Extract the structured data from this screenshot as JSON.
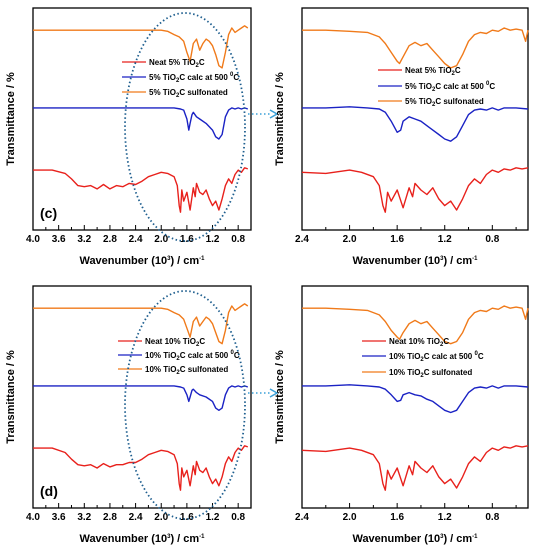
{
  "colors": {
    "neat": "#e8211c",
    "calc": "#1a22c4",
    "sulfonated": "#f07a1a",
    "ellipse": "#1f5f8f",
    "arrow": "#3aa0d8"
  },
  "axis_text": {
    "ylabel": "Transmittance / %",
    "xlabel_main": "Wavenumber (10",
    "xlabel_exp": "3",
    "xlabel_tail": ") / cm",
    "xlabel_tail_exp": "-1"
  },
  "panel_tags": {
    "c": "(c)",
    "d": "(d)"
  },
  "legend_fragments": {
    "tio": "TiO",
    "two": "2",
    "c_calc": "C calc at 500 ",
    "deg": "0",
    "celsius": "C",
    "c_plain": "C",
    "c_sulf": "C sulfonated"
  },
  "legend_prefixes": {
    "neat5": "Neat 5% ",
    "calc5": "5% ",
    "sulf5": "5% ",
    "neat10": "Neat 10% ",
    "calc10": "10% ",
    "sulf10": "10% "
  },
  "chart_data": [
    {
      "id": "c-full",
      "type": "line",
      "xlabel": "Wavenumber (10^3) / cm^-1",
      "ylabel": "Transmittance / %",
      "xlim": [
        4.0,
        0.6
      ],
      "x_ticks": [
        "4.0",
        "3.6",
        "3.2",
        "2.8",
        "2.4",
        "2.0",
        "1.6",
        "1.2",
        "0.8"
      ],
      "legend": {
        "placement": "top-right",
        "entries": [
          "Neat 5% TiO2C",
          "5% TiO2C calc at 500 0C",
          "5% TiO2C sulfonated"
        ]
      },
      "annotation": "(c)",
      "series": [
        {
          "name": "5% TiO2C sulfonated",
          "x": [
            4.0,
            2.0,
            1.9,
            1.8,
            1.72,
            1.65,
            1.6,
            1.55,
            1.5,
            1.45,
            1.4,
            1.35,
            1.3,
            1.25,
            1.2,
            1.15,
            1.1,
            1.05,
            1.0,
            0.95,
            0.9,
            0.85,
            0.8,
            0.75,
            0.7,
            0.65
          ],
          "y": [
            8.5,
            8.5,
            8.45,
            8.3,
            8.2,
            8.0,
            7.5,
            7.1,
            7.9,
            8.1,
            7.6,
            7.9,
            8.1,
            8.0,
            7.8,
            7.4,
            6.9,
            6.8,
            7.5,
            8.3,
            8.6,
            8.4,
            8.5,
            8.6,
            8.7,
            8.6
          ]
        },
        {
          "name": "5% TiO2C calc at 500 0C",
          "x": [
            4.0,
            3.0,
            2.0,
            1.8,
            1.7,
            1.65,
            1.6,
            1.57,
            1.55,
            1.52,
            1.5,
            1.45,
            1.4,
            1.3,
            1.2,
            1.15,
            1.1,
            1.05,
            1.0,
            0.95,
            0.9,
            0.85,
            0.8,
            0.75,
            0.7,
            0.65
          ],
          "y": [
            5.0,
            5.0,
            5.0,
            5.0,
            4.95,
            4.9,
            4.5,
            4.0,
            4.3,
            4.7,
            4.8,
            4.6,
            4.5,
            4.3,
            4.0,
            3.7,
            3.6,
            3.8,
            4.6,
            4.9,
            5.0,
            4.95,
            5.0,
            4.95,
            5.0,
            4.95
          ]
        },
        {
          "name": "Neat 5% TiO2C",
          "x": [
            4.0,
            3.7,
            3.5,
            3.4,
            3.3,
            3.2,
            3.1,
            3.0,
            2.9,
            2.8,
            2.7,
            2.6,
            2.5,
            2.4,
            2.3,
            2.2,
            2.1,
            2.0,
            1.9,
            1.8,
            1.75,
            1.72,
            1.7,
            1.68,
            1.65,
            1.6,
            1.55,
            1.5,
            1.47,
            1.45,
            1.4,
            1.35,
            1.3,
            1.25,
            1.2,
            1.15,
            1.1,
            1.05,
            1.0,
            0.95,
            0.9,
            0.85,
            0.8,
            0.75,
            0.7,
            0.65
          ],
          "y": [
            2.2,
            2.2,
            2.05,
            1.8,
            1.5,
            1.45,
            1.5,
            1.35,
            1.55,
            1.35,
            1.5,
            1.45,
            1.6,
            1.55,
            1.7,
            1.9,
            2.0,
            2.1,
            2.05,
            1.9,
            1.5,
            0.6,
            0.3,
            1.3,
            0.8,
            1.2,
            0.4,
            1.4,
            1.0,
            1.6,
            1.2,
            1.1,
            1.3,
            0.9,
            0.6,
            0.8,
            0.4,
            0.9,
            1.5,
            1.8,
            1.6,
            2.0,
            2.2,
            2.1,
            2.3,
            2.25
          ]
        }
      ]
    },
    {
      "id": "c-zoom",
      "type": "line",
      "xlabel": "Wavenumber (10^3) / cm^-1",
      "ylabel": "Transmittance / %",
      "xlim": [
        2.4,
        0.5
      ],
      "x_ticks": [
        "2.4",
        "2.0",
        "1.6",
        "1.2",
        "0.8"
      ],
      "legend": {
        "placement": "middle-right",
        "entries": [
          "Neat 5% TiO2C",
          "5% TiO2C calc at 500 0C",
          "5% TiO2C sulfonated"
        ]
      },
      "series": [
        {
          "name": "5% TiO2C sulfonated",
          "x": [
            2.4,
            2.2,
            2.0,
            1.85,
            1.75,
            1.7,
            1.65,
            1.6,
            1.58,
            1.55,
            1.5,
            1.45,
            1.4,
            1.35,
            1.3,
            1.25,
            1.2,
            1.15,
            1.1,
            1.05,
            1.0,
            0.95,
            0.9,
            0.85,
            0.8,
            0.75,
            0.7,
            0.65,
            0.6,
            0.55,
            0.52,
            0.5
          ],
          "y": [
            8.5,
            8.5,
            8.45,
            8.4,
            8.2,
            7.9,
            7.5,
            7.1,
            7.0,
            7.3,
            7.8,
            7.95,
            7.8,
            7.9,
            7.6,
            7.3,
            7.0,
            6.8,
            6.9,
            7.4,
            8.0,
            8.3,
            8.4,
            8.35,
            8.5,
            8.45,
            8.6,
            8.5,
            8.55,
            8.5,
            8.0,
            8.5
          ]
        },
        {
          "name": "5% TiO2C calc at 500 0C",
          "x": [
            2.4,
            2.2,
            2.0,
            1.85,
            1.75,
            1.7,
            1.65,
            1.6,
            1.57,
            1.55,
            1.5,
            1.45,
            1.4,
            1.35,
            1.3,
            1.25,
            1.2,
            1.15,
            1.1,
            1.05,
            1.0,
            0.95,
            0.9,
            0.85,
            0.8,
            0.75,
            0.7,
            0.6,
            0.5
          ],
          "y": [
            5.0,
            5.0,
            5.05,
            5.0,
            4.95,
            4.8,
            4.4,
            3.9,
            4.0,
            4.4,
            4.6,
            4.5,
            4.4,
            4.2,
            4.0,
            3.8,
            3.6,
            3.5,
            3.7,
            4.2,
            4.7,
            4.9,
            4.95,
            4.9,
            5.0,
            4.9,
            5.0,
            5.0,
            4.95
          ]
        },
        {
          "name": "Neat 5% TiO2C",
          "x": [
            2.4,
            2.2,
            2.0,
            1.9,
            1.8,
            1.75,
            1.72,
            1.7,
            1.68,
            1.65,
            1.6,
            1.55,
            1.5,
            1.47,
            1.45,
            1.4,
            1.35,
            1.3,
            1.25,
            1.2,
            1.15,
            1.1,
            1.05,
            1.0,
            0.95,
            0.9,
            0.85,
            0.8,
            0.75,
            0.7,
            0.65,
            0.6,
            0.55,
            0.5
          ],
          "y": [
            2.1,
            2.05,
            2.2,
            2.1,
            1.9,
            1.5,
            0.6,
            0.3,
            1.2,
            0.8,
            1.3,
            0.5,
            1.4,
            1.0,
            1.6,
            1.3,
            1.1,
            1.4,
            0.9,
            0.6,
            0.8,
            0.4,
            0.9,
            1.5,
            1.8,
            1.6,
            2.0,
            2.2,
            2.1,
            2.25,
            2.2,
            2.3,
            2.25,
            2.3
          ]
        }
      ]
    },
    {
      "id": "d-full",
      "type": "line",
      "xlabel": "Wavenumber (10^3) / cm^-1",
      "ylabel": "Transmittance / %",
      "xlim": [
        4.0,
        0.6
      ],
      "x_ticks": [
        "4.0",
        "3.6",
        "3.2",
        "2.8",
        "2.4",
        "2.0",
        "1.6",
        "1.2",
        "0.8"
      ],
      "legend": {
        "placement": "top-right",
        "entries": [
          "Neat 10% TiO2C",
          "10% TiO2C calc at 500 0C",
          "10% TiO2C sulfonated"
        ]
      },
      "annotation": "(d)",
      "series": [
        {
          "name": "10% TiO2C sulfonated",
          "x": [
            4.0,
            2.0,
            1.9,
            1.8,
            1.72,
            1.65,
            1.6,
            1.55,
            1.5,
            1.45,
            1.4,
            1.35,
            1.3,
            1.25,
            1.2,
            1.15,
            1.1,
            1.05,
            1.0,
            0.95,
            0.9,
            0.85,
            0.8,
            0.75,
            0.7,
            0.65
          ],
          "y": [
            8.5,
            8.5,
            8.45,
            8.3,
            8.2,
            8.0,
            7.6,
            7.2,
            7.9,
            8.1,
            7.7,
            7.9,
            8.1,
            8.0,
            7.8,
            7.4,
            7.0,
            6.9,
            7.5,
            8.3,
            8.6,
            8.4,
            8.5,
            8.6,
            8.7,
            8.6
          ]
        },
        {
          "name": "10% TiO2C calc at 500 0C",
          "x": [
            4.0,
            3.0,
            2.0,
            1.8,
            1.7,
            1.65,
            1.6,
            1.57,
            1.55,
            1.52,
            1.5,
            1.45,
            1.4,
            1.3,
            1.2,
            1.15,
            1.1,
            1.05,
            1.0,
            0.95,
            0.9,
            0.85,
            0.8,
            0.75,
            0.7,
            0.65
          ],
          "y": [
            5.0,
            5.0,
            5.0,
            5.0,
            4.95,
            4.9,
            4.6,
            4.3,
            4.5,
            4.8,
            4.85,
            4.7,
            4.6,
            4.5,
            4.3,
            4.0,
            3.9,
            4.0,
            4.6,
            4.9,
            5.0,
            4.95,
            5.0,
            4.95,
            5.0,
            4.95
          ]
        },
        {
          "name": "Neat 10% TiO2C",
          "x": [
            4.0,
            3.7,
            3.5,
            3.4,
            3.3,
            3.2,
            3.1,
            3.0,
            2.9,
            2.8,
            2.7,
            2.6,
            2.5,
            2.4,
            2.3,
            2.2,
            2.1,
            2.0,
            1.9,
            1.8,
            1.75,
            1.72,
            1.7,
            1.68,
            1.65,
            1.6,
            1.55,
            1.5,
            1.47,
            1.45,
            1.4,
            1.35,
            1.3,
            1.25,
            1.2,
            1.15,
            1.1,
            1.05,
            1.0,
            0.95,
            0.9,
            0.85,
            0.8,
            0.75,
            0.7,
            0.65
          ],
          "y": [
            2.2,
            2.2,
            2.0,
            1.7,
            1.45,
            1.4,
            1.45,
            1.3,
            1.5,
            1.35,
            1.45,
            1.45,
            1.55,
            1.55,
            1.7,
            1.9,
            2.0,
            2.1,
            2.05,
            1.9,
            1.5,
            0.6,
            0.3,
            1.3,
            0.9,
            1.2,
            0.5,
            1.4,
            1.0,
            1.6,
            1.2,
            1.1,
            1.3,
            0.9,
            0.6,
            0.8,
            0.5,
            0.9,
            1.5,
            1.8,
            1.6,
            2.0,
            2.2,
            2.1,
            2.3,
            2.25
          ]
        }
      ]
    },
    {
      "id": "d-zoom",
      "type": "line",
      "xlabel": "Wavenumber (10^3) / cm^-1",
      "ylabel": "Transmittance / %",
      "xlim": [
        2.4,
        0.5
      ],
      "x_ticks": [
        "2.4",
        "2.0",
        "1.6",
        "1.2",
        "0.8"
      ],
      "legend": {
        "placement": "top-right",
        "entries": [
          "Neat 10% TiO2C",
          "10% TiO2C calc at 500 0C",
          "10% TiO2C sulfonated"
        ]
      },
      "series": [
        {
          "name": "10% TiO2C sulfonated",
          "x": [
            2.4,
            2.2,
            2.0,
            1.85,
            1.75,
            1.7,
            1.65,
            1.6,
            1.58,
            1.55,
            1.5,
            1.45,
            1.4,
            1.35,
            1.3,
            1.25,
            1.2,
            1.15,
            1.1,
            1.05,
            1.0,
            0.95,
            0.9,
            0.85,
            0.8,
            0.75,
            0.7,
            0.65,
            0.6,
            0.55,
            0.52,
            0.5
          ],
          "y": [
            8.5,
            8.5,
            8.45,
            8.4,
            8.2,
            7.9,
            7.5,
            7.2,
            7.1,
            7.4,
            7.8,
            7.95,
            7.8,
            7.9,
            7.6,
            7.3,
            7.0,
            6.9,
            7.0,
            7.4,
            8.0,
            8.3,
            8.4,
            8.35,
            8.5,
            8.45,
            8.6,
            8.5,
            8.55,
            8.5,
            8.0,
            8.5
          ]
        },
        {
          "name": "10% TiO2C calc at 500 0C",
          "x": [
            2.4,
            2.2,
            2.0,
            1.85,
            1.75,
            1.7,
            1.65,
            1.6,
            1.57,
            1.55,
            1.5,
            1.45,
            1.4,
            1.35,
            1.3,
            1.25,
            1.2,
            1.15,
            1.1,
            1.05,
            1.0,
            0.95,
            0.9,
            0.85,
            0.8,
            0.75,
            0.7,
            0.6,
            0.5
          ],
          "y": [
            5.0,
            5.0,
            5.05,
            5.0,
            4.95,
            4.85,
            4.6,
            4.3,
            4.35,
            4.6,
            4.7,
            4.6,
            4.55,
            4.4,
            4.3,
            4.1,
            3.9,
            3.8,
            3.9,
            4.3,
            4.7,
            4.9,
            4.95,
            4.9,
            5.0,
            4.9,
            5.0,
            5.0,
            4.95
          ]
        },
        {
          "name": "Neat 10% TiO2C",
          "x": [
            2.4,
            2.2,
            2.0,
            1.9,
            1.8,
            1.75,
            1.72,
            1.7,
            1.68,
            1.65,
            1.6,
            1.55,
            1.5,
            1.47,
            1.45,
            1.4,
            1.35,
            1.3,
            1.25,
            1.2,
            1.15,
            1.1,
            1.05,
            1.0,
            0.95,
            0.9,
            0.85,
            0.8,
            0.75,
            0.7,
            0.65,
            0.6,
            0.55,
            0.5
          ],
          "y": [
            2.1,
            2.05,
            2.2,
            2.1,
            1.9,
            1.5,
            0.6,
            0.3,
            1.2,
            0.8,
            1.3,
            0.5,
            1.4,
            1.0,
            1.6,
            1.3,
            1.1,
            1.4,
            0.9,
            0.6,
            0.8,
            0.4,
            0.9,
            1.5,
            1.8,
            1.6,
            2.0,
            2.2,
            2.1,
            2.25,
            2.2,
            2.3,
            2.25,
            2.3
          ]
        }
      ]
    }
  ]
}
